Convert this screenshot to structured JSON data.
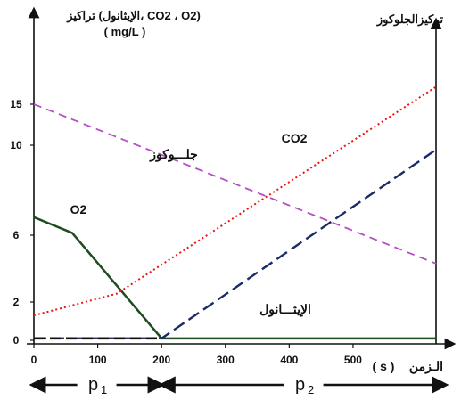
{
  "chart_data": {
    "type": "line",
    "title_left": "تراكيز (الإيثانول، CO2 ، O2)",
    "title_left_units": "( mg/L )",
    "title_right": "تركيزالجلوكوز",
    "xlabel": "الـزمن",
    "xunit": "( s )",
    "xlim": [
      0,
      630
    ],
    "ylim": [
      0,
      20
    ],
    "x_ticks": [
      0,
      100,
      200,
      300,
      400,
      500
    ],
    "y_ticks": [
      0,
      2,
      6,
      10,
      15
    ],
    "grid": false,
    "series": [
      {
        "name": "O2",
        "color": "#1e4d1e",
        "dash": "solid",
        "x": [
          0,
          60,
          200,
          630
        ],
        "y": [
          6.8,
          6.1,
          0.1,
          0.1
        ]
      },
      {
        "name": "CO2",
        "color": "#ee1111",
        "dash": "dotted",
        "x": [
          0,
          130,
          630
        ],
        "y": [
          1.3,
          2.5,
          17.5
        ]
      },
      {
        "name": "جلـــوكوز",
        "color": "#b44fc4",
        "dash": "dashed",
        "x": [
          0,
          630
        ],
        "y": [
          15.0,
          4.3
        ]
      },
      {
        "name": "الإيثـــانول",
        "color": "#1a2b66",
        "dash": "longdash",
        "x": [
          0,
          200,
          630
        ],
        "y": [
          0.1,
          0.1,
          9.8
        ]
      }
    ],
    "phases": [
      {
        "name": "p",
        "sub": "1",
        "from": 0,
        "to": 200
      },
      {
        "name": "p",
        "sub": "2",
        "from": 200,
        "to": 630
      }
    ]
  }
}
